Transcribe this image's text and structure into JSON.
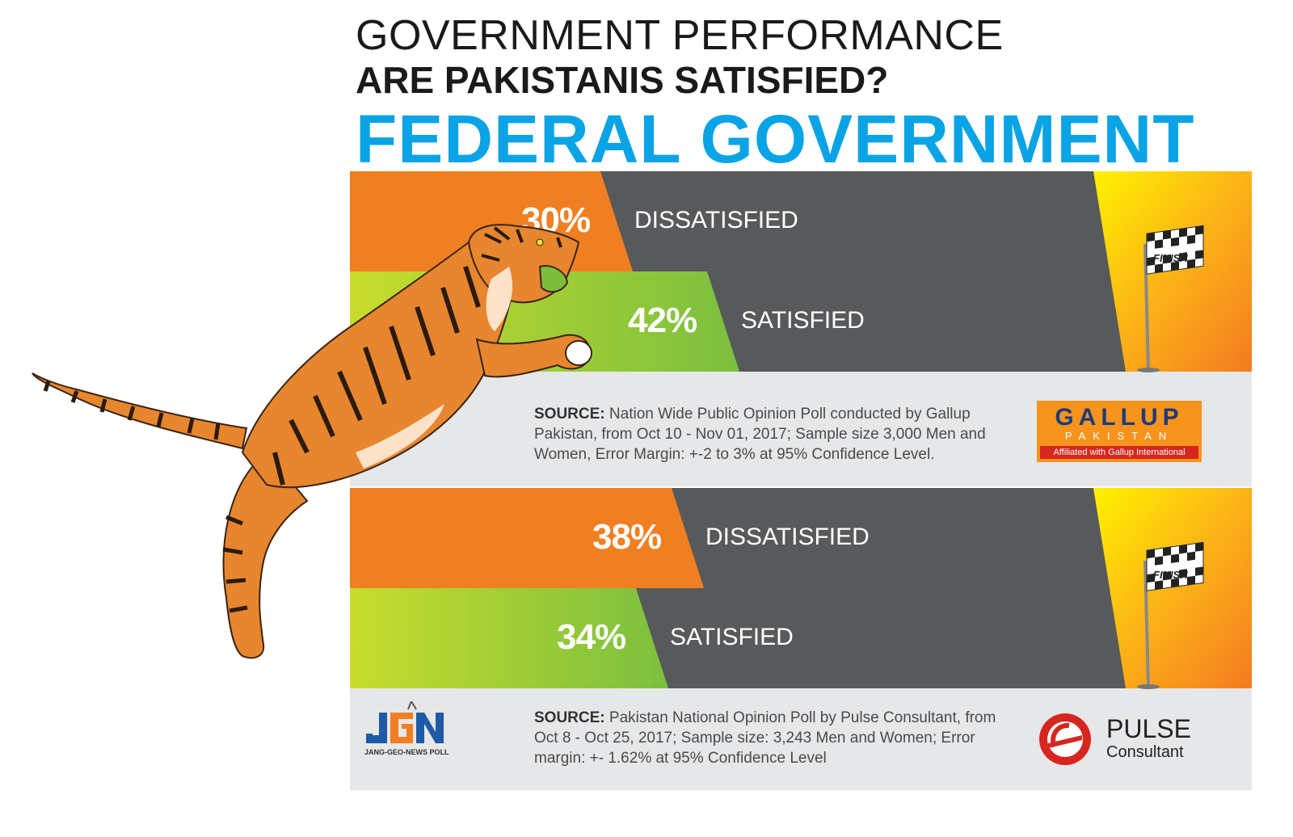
{
  "header": {
    "line1": "GOVERNMENT PERFORMANCE",
    "line2": "ARE PAKISTANIS SATISFIED?",
    "line3": "FEDERAL GOVERNMENT"
  },
  "colors": {
    "title_blue": "#0aa4e6",
    "dissatisfied_orange": "#f07f22",
    "satisfied_green": "#8cc63f",
    "track_grey": "#58595b",
    "footer_grey": "#e6e7e8",
    "finish_yellow": "#fcd116"
  },
  "finish_label": "FINISH",
  "chart_data": [
    {
      "type": "bar",
      "categories": [
        "DISSATISFIED",
        "SATISFIED"
      ],
      "values": [
        30,
        42
      ],
      "value_labels": [
        "30%",
        "42%"
      ],
      "source_prefix": "SOURCE:",
      "source_text": "Nation Wide Public Opinion Poll conducted by Gallup Pakistan, from Oct 10 - Nov 01, 2017; Sample size 3,000 Men and Women, Error Margin: +-2 to 3% at 95% Confidence Level.",
      "logo": {
        "name": "GALLUP",
        "sub": "PAKISTAN",
        "tagline": "Affiliated with Gallup International"
      }
    },
    {
      "type": "bar",
      "categories": [
        "DISSATISFIED",
        "SATISFIED"
      ],
      "values": [
        38,
        34
      ],
      "value_labels": [
        "38%",
        "34%"
      ],
      "source_prefix": "SOURCE:",
      "source_text": "Pakistan National Opinion Poll by Pulse Consultant, from Oct 8 - Oct 25, 2017; Sample size: 3,243 Men and Women; Error margin: +- 1.62% at 95% Confidence Level",
      "logo": {
        "name": "PULSE",
        "sub": "Consultant"
      }
    }
  ],
  "brand": {
    "jgn": "JANG-GEO-NEWS POLL"
  }
}
